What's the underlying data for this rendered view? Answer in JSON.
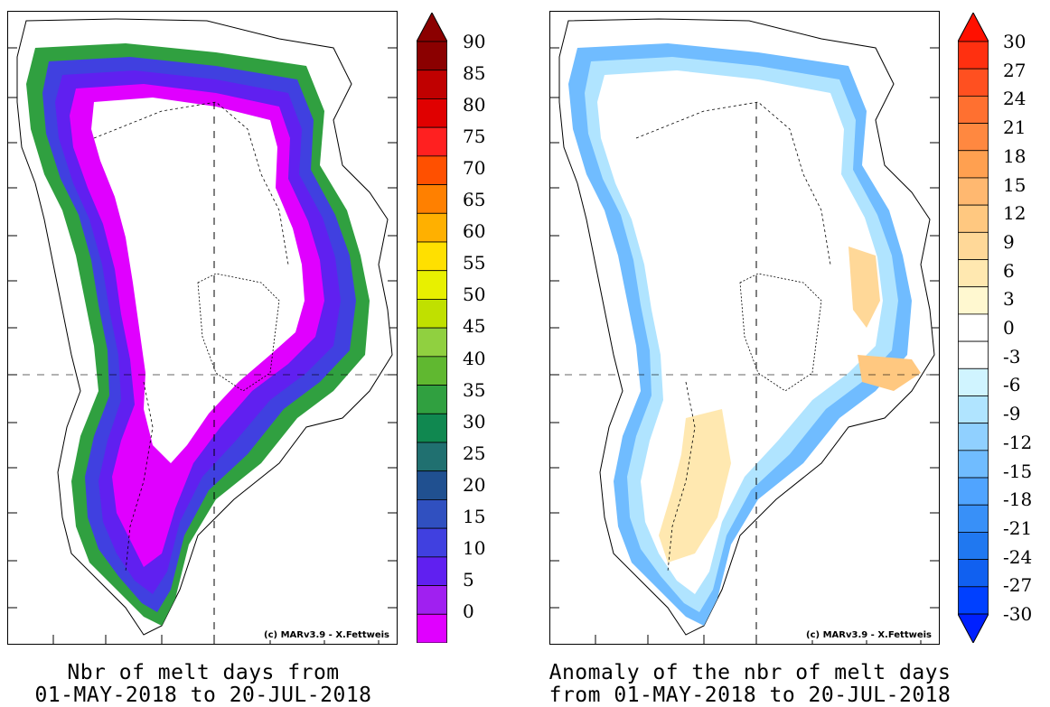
{
  "left_panel": {
    "caption_line1": "Nbr of melt days from",
    "caption_line2": "01-MAY-2018 to 20-JUL-2018",
    "copyright": "(c) MARv3.9 - X.Fettweis",
    "colorbar": {
      "labels": [
        "90",
        "85",
        "80",
        "75",
        "70",
        "65",
        "60",
        "55",
        "50",
        "45",
        "40",
        "35",
        "30",
        "25",
        "20",
        "15",
        "10",
        "5",
        "0"
      ],
      "colors": [
        "#8B0000",
        "#C00000",
        "#E00000",
        "#FF2020",
        "#FF5000",
        "#FF8000",
        "#FFB000",
        "#FFE000",
        "#E8F000",
        "#C0E000",
        "#90D040",
        "#60B830",
        "#30A040",
        "#108850",
        "#207070",
        "#205090",
        "#3050C0",
        "#4040E0",
        "#6020F0",
        "#A020F0",
        "#E000FF"
      ],
      "top_arrow_color": "#8B0000"
    }
  },
  "right_panel": {
    "caption_line1": "Anomaly of the nbr of melt days",
    "caption_line2": "from 01-MAY-2018 to 20-JUL-2018",
    "copyright": "(c) MARv3.9 - X.Fettweis",
    "colorbar": {
      "labels": [
        "30",
        "27",
        "24",
        "21",
        "18",
        "15",
        "12",
        "9",
        "6",
        "3",
        "0",
        "-3",
        "-6",
        "-9",
        "-12",
        "-15",
        "-18",
        "-21",
        "-24",
        "-27",
        "-30"
      ],
      "colors": [
        "#FF3010",
        "#FF5020",
        "#FF7030",
        "#FF8840",
        "#FFA050",
        "#FFB870",
        "#FFC880",
        "#FFD898",
        "#FFE8B0",
        "#FFF8D0",
        "#FFFFFF",
        "#FFFFFF",
        "#D0F4FF",
        "#B0E4FF",
        "#90D0FF",
        "#70BCFF",
        "#50A4FF",
        "#3890F8",
        "#2078F0",
        "#1060F0",
        "#0040FF"
      ],
      "top_arrow_color": "#FF1000",
      "bottom_arrow_color": "#0020FF"
    }
  },
  "legend_colors": {
    "melt_high": "#30A040",
    "melt_mid": "#4040E0",
    "melt_low": "#E000FF",
    "anomaly_neg": "#70BCFF",
    "anomaly_pos": "#FFD898"
  }
}
